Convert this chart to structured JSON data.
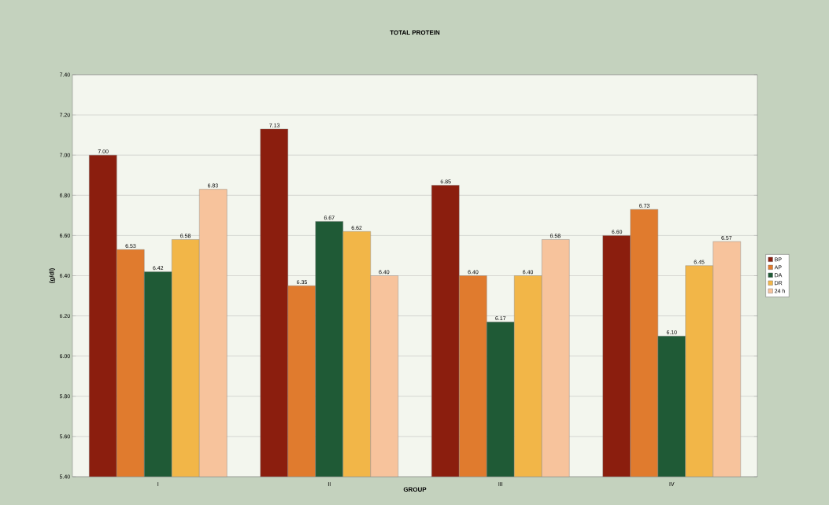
{
  "chart_data": {
    "type": "bar",
    "title": "TOTAL PROTEIN",
    "xlabel": "GROUP",
    "ylabel": "(g/dl)",
    "categories": [
      "I",
      "II",
      "III",
      "IV"
    ],
    "series": [
      {
        "name": "BP",
        "color": "#8b1e0e",
        "values": [
          7.0,
          7.13,
          6.85,
          6.6
        ],
        "value_labels": [
          "7.00",
          "7.13",
          "6.85",
          "6.60"
        ]
      },
      {
        "name": "AP",
        "color": "#e07b2e",
        "values": [
          6.53,
          6.35,
          6.4,
          6.73
        ],
        "value_labels": [
          "6.53",
          "6.35",
          "6.40",
          "6.73"
        ]
      },
      {
        "name": "DA",
        "color": "#1f5a36",
        "values": [
          6.42,
          6.67,
          6.17,
          6.1
        ],
        "value_labels": [
          "6.42",
          "6.67",
          "6.17",
          "6.10"
        ]
      },
      {
        "name": "DR",
        "color": "#f2b648",
        "values": [
          6.58,
          6.62,
          6.4,
          6.45
        ],
        "value_labels": [
          "6.58",
          "6.62",
          "6.40",
          "6.45"
        ]
      },
      {
        "name": "24 h",
        "color": "#f7c39c",
        "values": [
          6.83,
          6.4,
          6.58,
          6.57
        ],
        "value_labels": [
          "6.83",
          "6.40",
          "6.58",
          "6.57"
        ]
      }
    ],
    "ylim": [
      5.4,
      7.4
    ],
    "yticks": [
      {
        "value": 5.4,
        "label": "5.40"
      },
      {
        "value": 5.6,
        "label": "5.60"
      },
      {
        "value": 5.8,
        "label": "5.80"
      },
      {
        "value": 6.0,
        "label": "6.00"
      },
      {
        "value": 6.2,
        "label": "6.20"
      },
      {
        "value": 6.4,
        "label": "6.40"
      },
      {
        "value": 6.6,
        "label": "6.60"
      },
      {
        "value": 6.8,
        "label": "6.80"
      },
      {
        "value": 7.0,
        "label": "7.00"
      },
      {
        "value": 7.2,
        "label": "7.20"
      },
      {
        "value": 7.4,
        "label": "7.40"
      }
    ],
    "grid": "y",
    "legend": "right"
  }
}
